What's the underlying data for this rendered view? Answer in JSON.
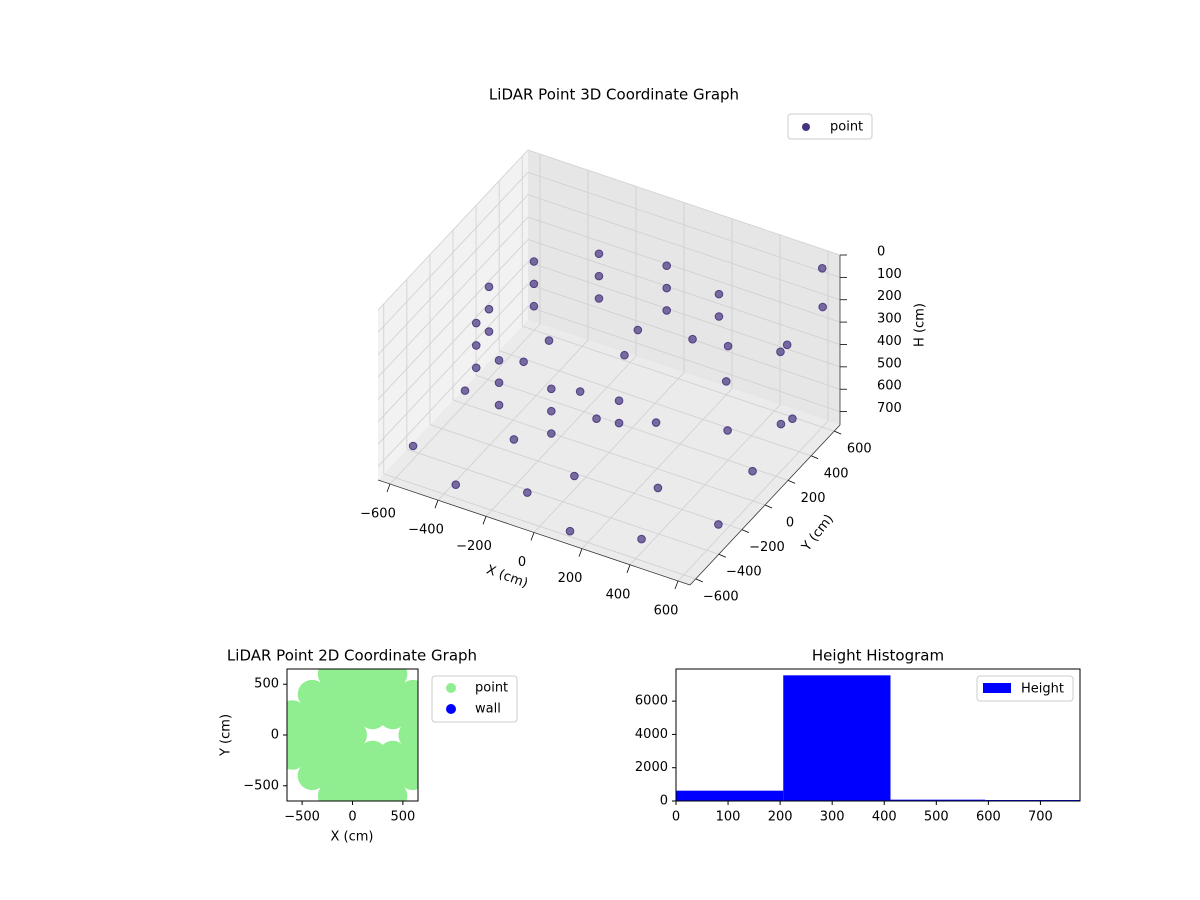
{
  "chart_data": [
    {
      "type": "scatter3d",
      "title": "LiDAR Point 3D Coordinate Graph",
      "xlabel": "X (cm)",
      "ylabel": "Y (cm)",
      "zlabel": "H (cm)",
      "xlim": [
        -650,
        650
      ],
      "ylim": [
        -650,
        650
      ],
      "zlim": [
        0,
        760
      ],
      "z_inverted": true,
      "xticks": [
        {
          "value": -600,
          "label": "−600"
        },
        {
          "value": -400,
          "label": "−400"
        },
        {
          "value": -200,
          "label": "−200"
        },
        0,
        200,
        400,
        600
      ],
      "yticks": [
        {
          "value": -600,
          "label": "−600"
        },
        {
          "value": -400,
          "label": "−400"
        },
        {
          "value": -200,
          "label": "−200"
        },
        0,
        200,
        400,
        600
      ],
      "zticks": [
        0,
        100,
        200,
        300,
        400,
        500,
        600,
        700
      ],
      "grid": true,
      "legend": "upper right",
      "series": [
        {
          "name": "point",
          "color": "#46337e",
          "x": [
            250,
            0,
            -250,
            -433,
            -500,
            -433,
            -250,
            0,
            250,
            250,
            0,
            -250,
            -433,
            -500,
            -433,
            -250,
            0,
            250,
            0,
            -250,
            -433,
            -500,
            -433,
            -250,
            0,
            0,
            -250,
            0,
            -600,
            -350,
            -100,
            150,
            400,
            600,
            550,
            500,
            200,
            -200,
            -500,
            -600,
            -300,
            0,
            300,
            100,
            -100,
            350,
            600,
            650,
            550,
            450,
            620,
            400,
            300
          ],
          "y": [
            433,
            500,
            433,
            250,
            0,
            -250,
            -433,
            -500,
            -433,
            433,
            500,
            433,
            250,
            0,
            -250,
            -433,
            -500,
            -433,
            500,
            433,
            250,
            0,
            -250,
            -433,
            -500,
            250,
            0,
            -250,
            -450,
            -600,
            -500,
            -650,
            -550,
            -300,
            100,
            450,
            600,
            550,
            300,
            0,
            -200,
            -300,
            -200,
            200,
            100,
            300,
            600,
            500,
            400,
            550,
            300,
            200,
            100
          ],
          "z": [
            200,
            200,
            200,
            200,
            200,
            200,
            200,
            200,
            200,
            300,
            300,
            300,
            300,
            300,
            300,
            300,
            300,
            300,
            400,
            400,
            400,
            400,
            400,
            400,
            400,
            350,
            350,
            350,
            700,
            700,
            700,
            700,
            700,
            700,
            700,
            700,
            700,
            700,
            700,
            700,
            700,
            700,
            700,
            700,
            700,
            700,
            50,
            150,
            300,
            450,
            550,
            250,
            200
          ]
        }
      ]
    },
    {
      "type": "scatter",
      "title": "LiDAR Point 2D Coordinate Graph",
      "xlabel": "X (cm)",
      "ylabel": "Y (cm)",
      "xlim": [
        -650,
        650
      ],
      "ylim": [
        -650,
        650
      ],
      "xticks": [
        {
          "value": -500,
          "label": "−500"
        },
        0,
        500
      ],
      "yticks": [
        {
          "value": -500,
          "label": "−500"
        },
        0,
        500
      ],
      "legend": "outside upper right",
      "series": [
        {
          "name": "point",
          "color": "#90ee90",
          "x": [
            -200,
            0,
            200,
            400,
            -400,
            -200,
            0,
            200,
            400,
            600,
            -600,
            -400,
            -200,
            0,
            200,
            400,
            600,
            -600,
            -400,
            -200,
            0,
            600,
            -600,
            -400,
            -200,
            0,
            200,
            400,
            600,
            -400,
            -200,
            0,
            200,
            400,
            600,
            -200,
            0,
            200,
            400
          ],
          "y": [
            600,
            600,
            600,
            600,
            400,
            400,
            400,
            400,
            400,
            400,
            200,
            200,
            200,
            200,
            200,
            200,
            200,
            0,
            0,
            0,
            0,
            0,
            -200,
            -200,
            -200,
            -200,
            -200,
            -200,
            -200,
            -400,
            -400,
            -400,
            -400,
            -400,
            -400,
            -600,
            -600,
            -600,
            -600
          ]
        },
        {
          "name": "wall",
          "color": "#0000ff",
          "x": [],
          "y": []
        }
      ]
    },
    {
      "type": "histogram",
      "title": "Height Histogram",
      "bins": [
        0,
        206,
        412,
        594,
        776
      ],
      "xlim": [
        0,
        776
      ],
      "ylim": [
        0,
        7930
      ],
      "xticks": [
        0,
        100,
        200,
        300,
        400,
        500,
        600,
        700
      ],
      "yticks": [
        0,
        2000,
        4000,
        6000
      ],
      "legend": "upper right",
      "series": [
        {
          "name": "Height",
          "color": "#0000ff",
          "values": [
            620,
            7550,
            80,
            60
          ]
        }
      ]
    }
  ]
}
